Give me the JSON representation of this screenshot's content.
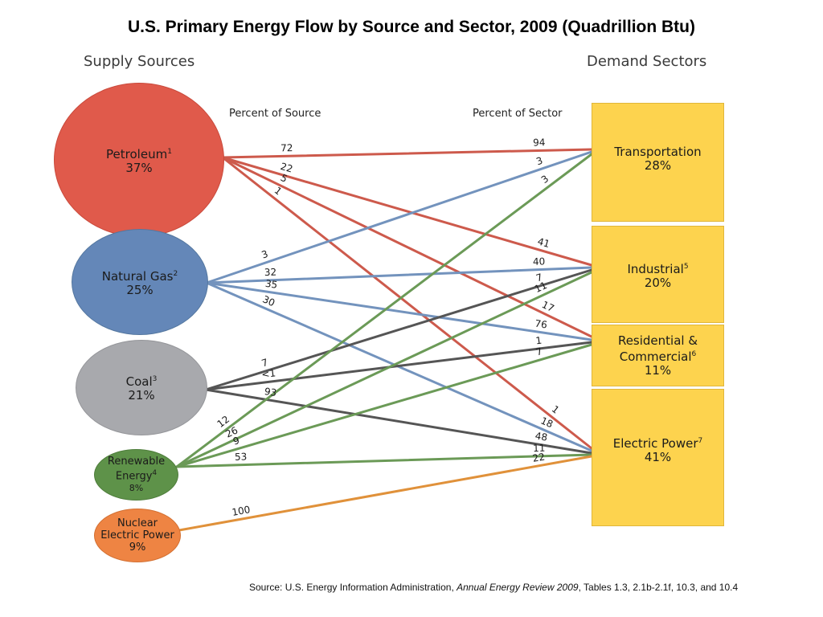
{
  "title": "U.S. Primary Energy Flow by Source and Sector, 2009 (Quadrillion Btu)",
  "supply_header": "Supply Sources",
  "demand_header": "Demand Sectors",
  "percent_of_source": "Percent of Source",
  "percent_of_sector": "Percent of Sector",
  "sources": {
    "petroleum": {
      "name": "Petroleum",
      "note": "1",
      "percent": "37%",
      "color": "#e05a4b"
    },
    "natural_gas": {
      "name": "Natural Gas",
      "note": "2",
      "percent": "25%",
      "color": "#6487b8"
    },
    "coal": {
      "name": "Coal",
      "note": "3",
      "percent": "21%",
      "color": "#a8a9ad"
    },
    "renewable": {
      "name1": "Renewable",
      "name2": "Energy",
      "note": "4",
      "percent": "8%",
      "color": "#5e9249"
    },
    "nuclear": {
      "name1": "Nuclear",
      "name2": "Electric Power",
      "percent": "9%",
      "color": "#ee8443"
    }
  },
  "sectors": {
    "transportation": {
      "name": "Transportation",
      "percent": "28%"
    },
    "industrial": {
      "name": "Industrial",
      "note": "5",
      "percent": "20%"
    },
    "residential": {
      "name1": "Residential &",
      "name2": "Commercial",
      "note": "6",
      "percent": "11%"
    },
    "electric": {
      "name": "Electric Power",
      "note": "7",
      "percent": "41%"
    }
  },
  "flows": [
    {
      "from": "petroleum",
      "to": "transportation",
      "pct_source": "72",
      "pct_sector": "94",
      "color": "#cd5a4c"
    },
    {
      "from": "petroleum",
      "to": "industrial",
      "pct_source": "22",
      "pct_sector": "41",
      "color": "#cd5a4c"
    },
    {
      "from": "petroleum",
      "to": "residential",
      "pct_source": "5",
      "pct_sector": "17",
      "color": "#cd5a4c"
    },
    {
      "from": "petroleum",
      "to": "electric",
      "pct_source": "1",
      "pct_sector": "1",
      "color": "#cd5a4c"
    },
    {
      "from": "natural_gas",
      "to": "transportation",
      "pct_source": "3",
      "pct_sector": "3",
      "color": "#7393bd"
    },
    {
      "from": "natural_gas",
      "to": "industrial",
      "pct_source": "32",
      "pct_sector": "40",
      "color": "#7393bd"
    },
    {
      "from": "natural_gas",
      "to": "residential",
      "pct_source": "35",
      "pct_sector": "76",
      "color": "#7393bd"
    },
    {
      "from": "natural_gas",
      "to": "electric",
      "pct_source": "30",
      "pct_sector": "18",
      "color": "#7393bd"
    },
    {
      "from": "coal",
      "to": "industrial",
      "pct_source": "7",
      "pct_sector": "7",
      "color": "#555555"
    },
    {
      "from": "coal",
      "to": "residential",
      "pct_source": "<1",
      "pct_sector": "1",
      "color": "#555555"
    },
    {
      "from": "coal",
      "to": "electric",
      "pct_source": "93",
      "pct_sector": "48",
      "color": "#555555"
    },
    {
      "from": "renewable",
      "to": "transportation",
      "pct_source": "12",
      "pct_sector": "3",
      "color": "#6b9a57"
    },
    {
      "from": "renewable",
      "to": "industrial",
      "pct_source": "26",
      "pct_sector": "11",
      "color": "#6b9a57"
    },
    {
      "from": "renewable",
      "to": "residential",
      "pct_source": "9",
      "pct_sector": "7",
      "color": "#6b9a57"
    },
    {
      "from": "renewable",
      "to": "electric",
      "pct_source": "53",
      "pct_sector": "11",
      "color": "#6b9a57"
    },
    {
      "from": "nuclear",
      "to": "electric",
      "pct_source": "100",
      "pct_sector": "22",
      "color": "#e0913a"
    }
  ],
  "source_note": {
    "prefix": "Source: U.S. Energy Information Administration, ",
    "italic": "Annual Energy Review 2009",
    "suffix": ", Tables 1.3, 2.1b-2.1f, 10.3, and 10.4"
  }
}
